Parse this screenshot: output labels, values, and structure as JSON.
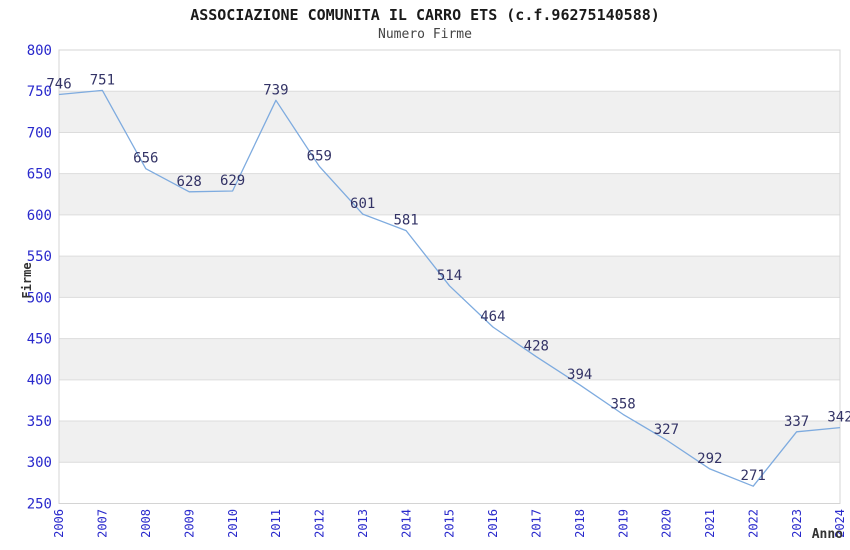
{
  "chart_data": {
    "type": "line",
    "title": "ASSOCIAZIONE COMUNITA IL CARRO ETS (c.f.96275140588)",
    "subtitle": "Numero Firme",
    "xlabel": "Anno",
    "ylabel": "Firme",
    "categories": [
      "2006",
      "2007",
      "2008",
      "2009",
      "2010",
      "2011",
      "2012",
      "2013",
      "2014",
      "2015",
      "2016",
      "2017",
      "2018",
      "2019",
      "2020",
      "2021",
      "2022",
      "2023",
      "2024"
    ],
    "series": [
      {
        "name": "Numero Firme",
        "values": [
          746,
          751,
          656,
          628,
          629,
          739,
          659,
          601,
          581,
          514,
          464,
          428,
          394,
          358,
          327,
          292,
          271,
          337,
          342
        ]
      }
    ],
    "ylim": [
      250,
      800
    ],
    "yticks": [
      800,
      750,
      700,
      650,
      600,
      550,
      500,
      450,
      400,
      350,
      300,
      250
    ],
    "grid": "alternating-horizontal-bands",
    "legend": "none",
    "data_labels": "above-points",
    "colors": {
      "background": "#FFFFFF",
      "band": "#F0F0F0",
      "band_line": "#DCDCDC",
      "plot_border": "#D4D4D4",
      "axis_tick_label": "#2929CC",
      "value_label": "#333366",
      "line": "#7EABDF",
      "title": "#1A1A1A",
      "subtitle": "#444444",
      "axis_title": "#333333"
    }
  }
}
